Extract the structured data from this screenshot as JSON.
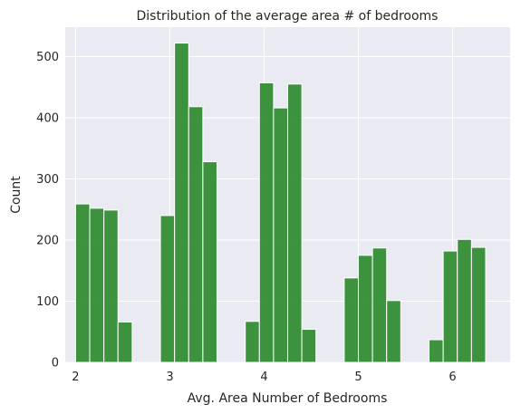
{
  "chart_data": {
    "type": "bar",
    "title": "Distribution of the average area # of bedrooms",
    "xlabel": "Avg. Area Number of Bedrooms",
    "ylabel": "Count",
    "xlim": [
      1.89,
      6.61
    ],
    "ylim": [
      0,
      548
    ],
    "xticks": [
      "2",
      "3",
      "4",
      "5",
      "6"
    ],
    "yticks": [
      "0",
      "100",
      "200",
      "300",
      "400",
      "500"
    ],
    "xtick_values": [
      2,
      3,
      4,
      5,
      6
    ],
    "ytick_values": [
      0,
      100,
      200,
      300,
      400,
      500
    ],
    "grid": true,
    "bar_color": "#2e8b2e",
    "bin_start": 2.0,
    "bin_width": 0.15,
    "bins": [
      {
        "bin": "2.00-2.15",
        "value": 259
      },
      {
        "bin": "2.15-2.30",
        "value": 252
      },
      {
        "bin": "2.30-2.45",
        "value": 249
      },
      {
        "bin": "2.45-2.60",
        "value": 66
      },
      {
        "bin": "2.60-2.75",
        "value": 0
      },
      {
        "bin": "2.75-2.90",
        "value": 0
      },
      {
        "bin": "2.90-3.05",
        "value": 240
      },
      {
        "bin": "3.05-3.20",
        "value": 522
      },
      {
        "bin": "3.20-3.35",
        "value": 418
      },
      {
        "bin": "3.35-3.50",
        "value": 328
      },
      {
        "bin": "3.50-3.65",
        "value": 0
      },
      {
        "bin": "3.65-3.80",
        "value": 0
      },
      {
        "bin": "3.80-3.95",
        "value": 67
      },
      {
        "bin": "3.95-4.10",
        "value": 457
      },
      {
        "bin": "4.10-4.25",
        "value": 416
      },
      {
        "bin": "4.25-4.40",
        "value": 455
      },
      {
        "bin": "4.40-4.55",
        "value": 54
      },
      {
        "bin": "4.55-4.70",
        "value": 0
      },
      {
        "bin": "4.70-4.85",
        "value": 0
      },
      {
        "bin": "4.85-5.00",
        "value": 138
      },
      {
        "bin": "5.00-5.15",
        "value": 175
      },
      {
        "bin": "5.15-5.30",
        "value": 187
      },
      {
        "bin": "5.30-5.45",
        "value": 101
      },
      {
        "bin": "5.45-5.60",
        "value": 0
      },
      {
        "bin": "5.60-5.75",
        "value": 0
      },
      {
        "bin": "5.75-5.90",
        "value": 37
      },
      {
        "bin": "5.90-6.05",
        "value": 182
      },
      {
        "bin": "6.05-6.20",
        "value": 201
      },
      {
        "bin": "6.20-6.35",
        "value": 188
      }
    ]
  }
}
